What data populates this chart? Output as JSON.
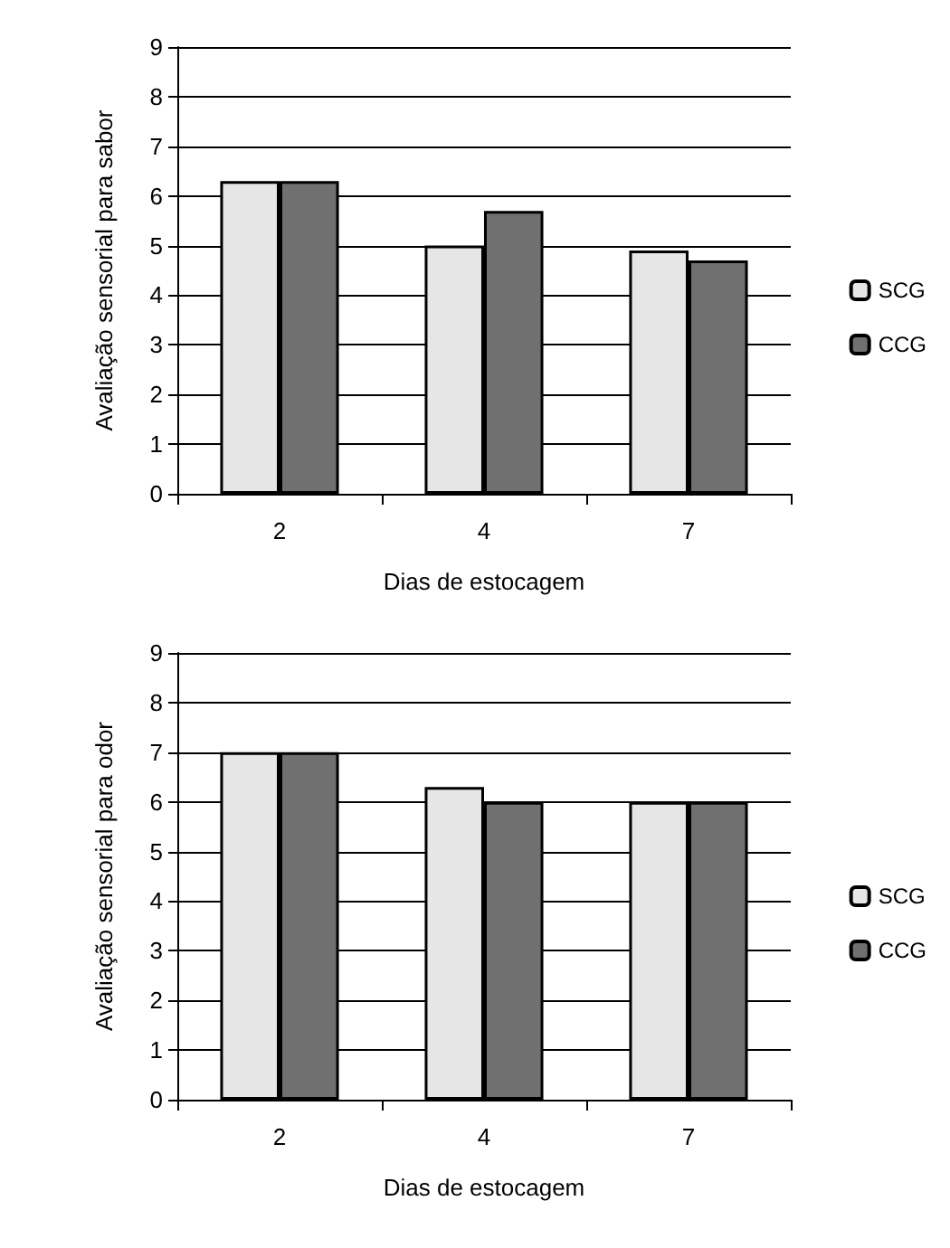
{
  "chart_data": [
    {
      "type": "bar",
      "xlabel": "Dias de estocagem",
      "ylabel": "Avaliação sensorial para sabor",
      "categories": [
        "2",
        "4",
        "7"
      ],
      "series": [
        {
          "name": "SCG",
          "color": "#e6e6e6",
          "values": [
            6.3,
            5.0,
            4.9
          ]
        },
        {
          "name": "CCG",
          "color": "#707070",
          "values": [
            6.3,
            5.7,
            4.7
          ]
        }
      ],
      "ylim": [
        0,
        9
      ],
      "yticks": [
        0,
        1,
        2,
        3,
        4,
        5,
        6,
        7,
        8,
        9
      ],
      "grid": "y",
      "legend": "right"
    },
    {
      "type": "bar",
      "xlabel": "Dias de estocagem",
      "ylabel": "Avaliação sensorial para odor",
      "categories": [
        "2",
        "4",
        "7"
      ],
      "series": [
        {
          "name": "SCG",
          "color": "#e6e6e6",
          "values": [
            7.0,
            6.3,
            6.0
          ]
        },
        {
          "name": "CCG",
          "color": "#707070",
          "values": [
            7.0,
            6.0,
            6.0
          ]
        }
      ],
      "ylim": [
        0,
        9
      ],
      "yticks": [
        0,
        1,
        2,
        3,
        4,
        5,
        6,
        7,
        8,
        9
      ],
      "grid": "y",
      "legend": "right"
    }
  ]
}
